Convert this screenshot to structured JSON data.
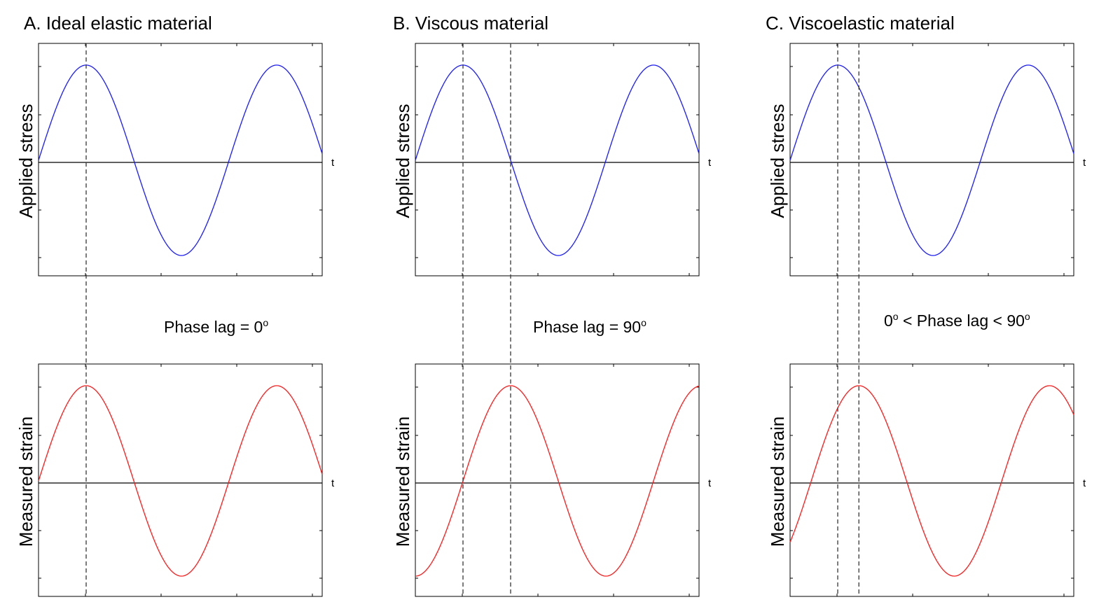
{
  "colors": {
    "stress": "#1a1aff",
    "strain": "#ff1a1a",
    "axis": "#000000",
    "guide": "#444444"
  },
  "panels": [
    {
      "title": "A. Ideal elastic material",
      "lag_text": "Phase lag = 0",
      "lag_sup": "o",
      "lag_suffix": "",
      "lag_prefix": "",
      "lag_prefix_sup": "",
      "stress_label": "Applied stress",
      "strain_label": "Measured strain",
      "t_label": "t",
      "phase_lag_deg": 0
    },
    {
      "title": "B. Viscous material",
      "lag_text": "Phase lag = 90",
      "lag_sup": "o",
      "lag_suffix": "",
      "lag_prefix": "",
      "lag_prefix_sup": "",
      "stress_label": "Applied stress",
      "strain_label": "Measured strain",
      "t_label": "t",
      "phase_lag_deg": 90
    },
    {
      "title": "C. Viscoelastic material",
      "lag_text": " < Phase lag < 90",
      "lag_sup": "o",
      "lag_suffix": "",
      "lag_prefix": "0",
      "lag_prefix_sup": "o",
      "stress_label": "Applied stress",
      "strain_label": "Measured strain",
      "t_label": "t",
      "phase_lag_deg": 40
    }
  ]
}
